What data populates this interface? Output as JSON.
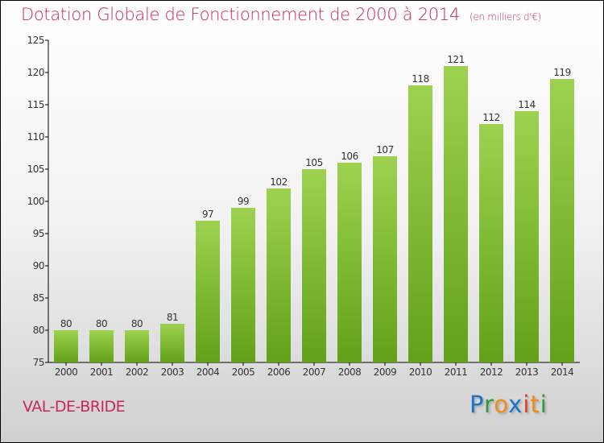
{
  "chart_data": {
    "type": "bar",
    "title": "Dotation Globale de Fonctionnement de 2000 à 2014",
    "subtitle": "(en milliers d'€)",
    "categories": [
      "2000",
      "2001",
      "2002",
      "2003",
      "2004",
      "2005",
      "2006",
      "2007",
      "2008",
      "2009",
      "2010",
      "2011",
      "2012",
      "2013",
      "2014"
    ],
    "values": [
      80,
      80,
      80,
      81,
      97,
      99,
      102,
      105,
      106,
      107,
      118,
      121,
      112,
      114,
      119
    ],
    "ylim": [
      75,
      125
    ],
    "yticks": [
      75,
      80,
      85,
      90,
      95,
      100,
      105,
      110,
      115,
      120,
      125
    ],
    "xlabel": "",
    "ylabel": "",
    "bar_color": "#8cc63f"
  },
  "commune": "VAL-DE-BRIDE",
  "logo": {
    "letters": [
      "P",
      "r",
      "o",
      "x",
      "i",
      "t",
      "i"
    ],
    "colors": [
      "#1a73c9",
      "#2e9a3a",
      "#f28a1a",
      "#1a73c9",
      "#e0401a",
      "#f28a1a",
      "#2e9a3a"
    ]
  }
}
